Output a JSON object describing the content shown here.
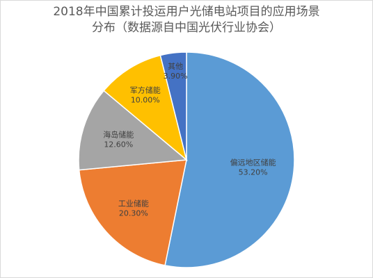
{
  "chart_data": {
    "type": "pie",
    "title_lines": [
      "2018年中国累计投运用户光储电站项目的应用场景",
      "分布（数据源自中国光伏行业协会）"
    ],
    "slices": [
      {
        "name": "偏远地区储能",
        "value": 53.2,
        "label": "53.20%",
        "color": "#5b9bd5"
      },
      {
        "name": "工业储能",
        "value": 20.3,
        "label": "20.30%",
        "color": "#ed7d31"
      },
      {
        "name": "海岛储能",
        "value": 12.6,
        "label": "12.60%",
        "color": "#a5a5a5"
      },
      {
        "name": "军方储能",
        "value": 10.0,
        "label": "10.00%",
        "color": "#ffc000"
      },
      {
        "name": "其他",
        "value": 3.9,
        "label": "3.90%",
        "color": "#4472c4"
      }
    ],
    "start": "12 o'clock",
    "direction": "clockwise"
  }
}
